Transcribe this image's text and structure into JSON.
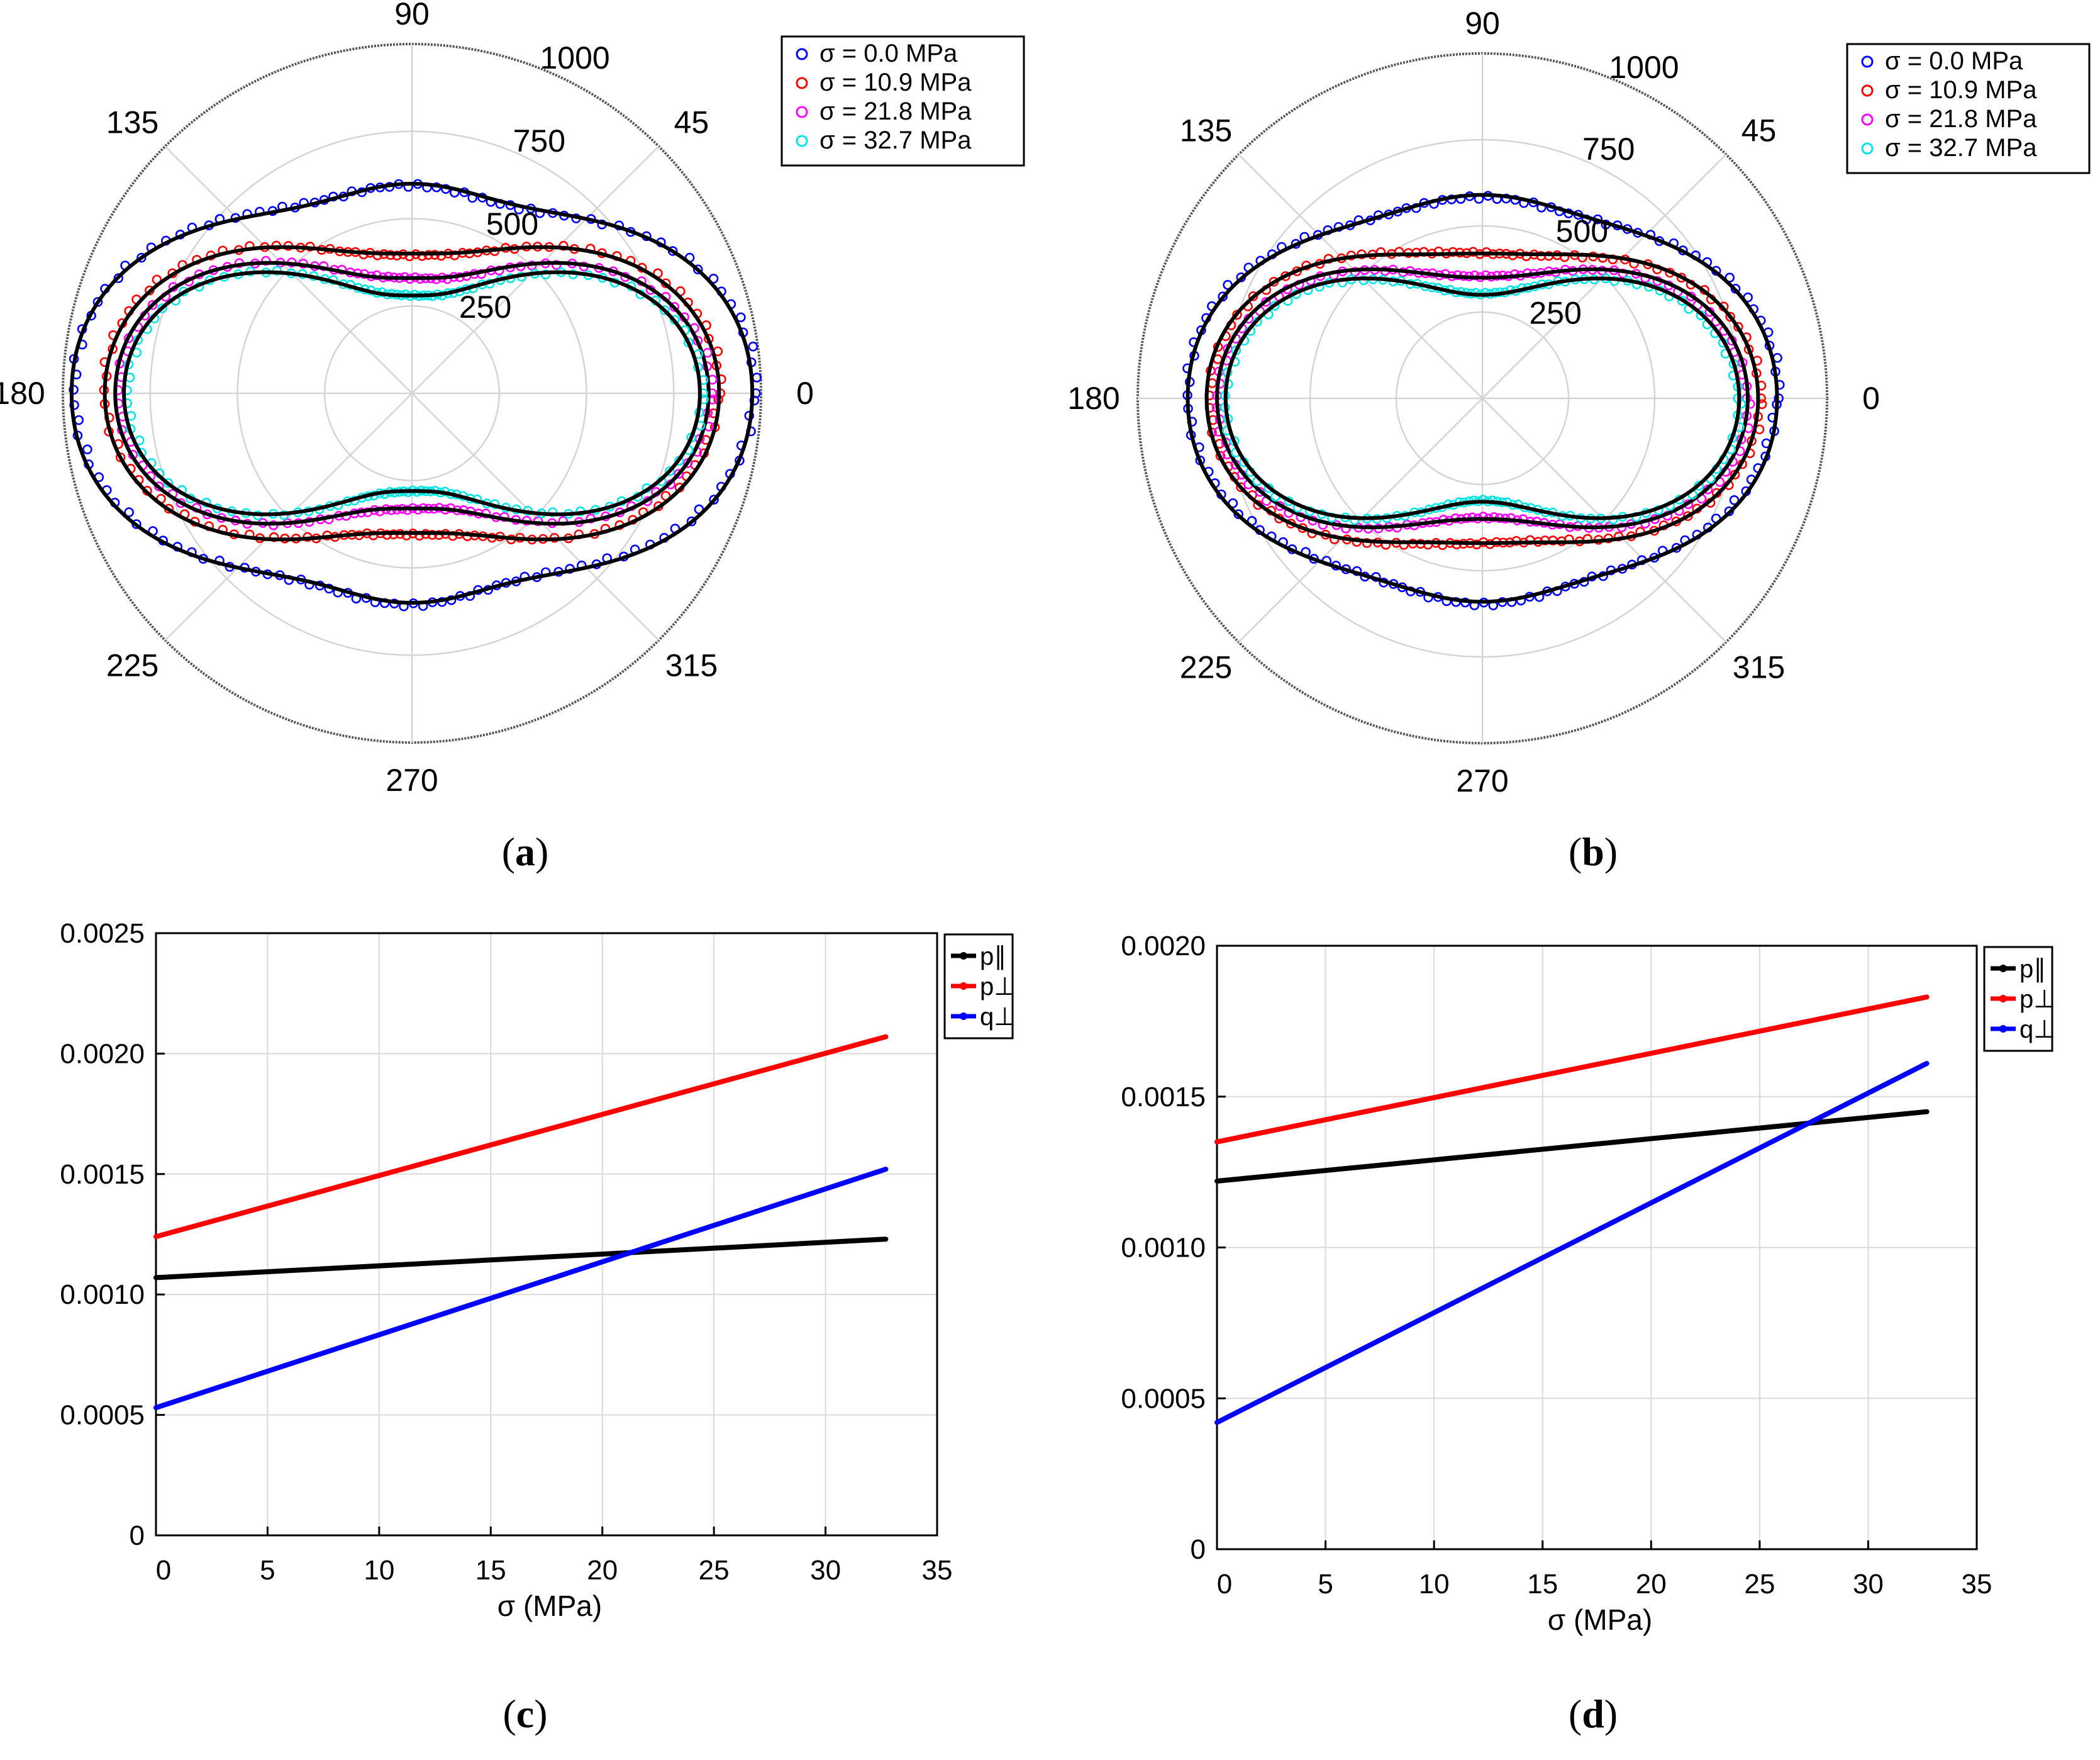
{
  "chart_data": [
    {
      "id": "a",
      "type": "scatter",
      "projection": "polar",
      "caption_letter": "a",
      "angle_ticks": [
        "0",
        "45",
        "90",
        "135",
        "180",
        "225",
        "270",
        "315"
      ],
      "r_ticks": [
        "250",
        "500",
        "750",
        "1000"
      ],
      "r_tick_values": [
        250,
        500,
        750,
        1000
      ],
      "rlim": [
        0,
        1000
      ],
      "legend": [
        {
          "label": "σ =   0.0 MPa",
          "color": "#0000ff"
        },
        {
          "label": "σ = 10.9 MPa",
          "color": "#ff0000"
        },
        {
          "label": "σ = 21.8 MPa",
          "color": "#ff00ff"
        },
        {
          "label": "σ = 32.7 MPa",
          "color": "#00e5e5"
        }
      ],
      "series": [
        {
          "name": "σ = 0.0 MPa",
          "color": "#0000ff",
          "r_at_0deg": 975,
          "r_at_90deg": 600,
          "r_at_35deg": 750
        },
        {
          "name": "σ = 10.9 MPa",
          "color": "#ff0000",
          "r_at_0deg": 880,
          "r_at_90deg": 400,
          "r_at_35deg": 660
        },
        {
          "name": "σ = 21.8 MPa",
          "color": "#ff00ff",
          "r_at_0deg": 850,
          "r_at_90deg": 330,
          "r_at_35deg": 600
        },
        {
          "name": "σ = 32.7 MPa",
          "color": "#00e5e5",
          "r_at_0deg": 825,
          "r_at_90deg": 280,
          "r_at_35deg": 560
        }
      ],
      "fit_color": "#000000"
    },
    {
      "id": "b",
      "type": "scatter",
      "projection": "polar",
      "caption_letter": "b",
      "angle_ticks": [
        "0",
        "45",
        "90",
        "135",
        "180",
        "225",
        "270",
        "315"
      ],
      "r_ticks": [
        "250",
        "500",
        "750",
        "1000"
      ],
      "r_tick_values": [
        250,
        500,
        750,
        1000
      ],
      "rlim": [
        0,
        1000
      ],
      "legend": [
        {
          "label": "σ =   0.0 MPa",
          "color": "#0000ff"
        },
        {
          "label": "σ = 10.9 MPa",
          "color": "#ff0000"
        },
        {
          "label": "σ = 21.8 MPa",
          "color": "#ff00ff"
        },
        {
          "label": "σ = 32.7 MPa",
          "color": "#00e5e5"
        }
      ],
      "series": [
        {
          "name": "σ = 0.0 MPa",
          "color": "#0000ff",
          "r_at_0deg": 855,
          "r_at_90deg": 590,
          "r_at_35deg": 700
        },
        {
          "name": "σ = 10.9 MPa",
          "color": "#ff0000",
          "r_at_0deg": 800,
          "r_at_90deg": 420,
          "r_at_35deg": 630
        },
        {
          "name": "σ = 21.8 MPa",
          "color": "#ff00ff",
          "r_at_0deg": 770,
          "r_at_90deg": 350,
          "r_at_35deg": 590
        },
        {
          "name": "σ = 32.7 MPa",
          "color": "#00e5e5",
          "r_at_0deg": 745,
          "r_at_90deg": 300,
          "r_at_35deg": 560
        }
      ],
      "fit_color": "#000000"
    },
    {
      "id": "c",
      "type": "line",
      "caption_letter": "c",
      "xlabel": "σ (MPa)",
      "ylabel": "",
      "xlim": [
        0,
        35
      ],
      "ylim": [
        0,
        0.0025
      ],
      "x_ticks": [
        0,
        5,
        10,
        15,
        20,
        25,
        30,
        35
      ],
      "x_tick_labels": [
        "0",
        "5",
        "10",
        "15",
        "20",
        "25",
        "30",
        "35"
      ],
      "y_ticks": [
        0,
        0.0005,
        0.001,
        0.0015,
        0.002,
        0.0025
      ],
      "y_tick_labels": [
        "0",
        "0.0005",
        "0.0010",
        "0.0015",
        "0.0020",
        "0.0025"
      ],
      "grid": true,
      "legend_position": "top-right",
      "series": [
        {
          "name": "p∥",
          "color": "#000000",
          "x": [
            0,
            32.7
          ],
          "y": [
            0.00107,
            0.00123
          ]
        },
        {
          "name": "p⊥",
          "color": "#ff0000",
          "x": [
            0,
            32.7
          ],
          "y": [
            0.00124,
            0.00207
          ]
        },
        {
          "name": "q⊥",
          "color": "#0000ff",
          "x": [
            0,
            32.7
          ],
          "y": [
            0.00053,
            0.00152
          ]
        }
      ]
    },
    {
      "id": "d",
      "type": "line",
      "caption_letter": "d",
      "xlabel": "σ (MPa)",
      "ylabel": "",
      "xlim": [
        0,
        35
      ],
      "ylim": [
        0,
        0.002
      ],
      "x_ticks": [
        0,
        5,
        10,
        15,
        20,
        25,
        30,
        35
      ],
      "x_tick_labels": [
        "0",
        "5",
        "10",
        "15",
        "20",
        "25",
        "30",
        "35"
      ],
      "y_ticks": [
        0,
        0.0005,
        0.001,
        0.0015,
        0.002
      ],
      "y_tick_labels": [
        "0",
        "0.0005",
        "0.0010",
        "0.0015",
        "0.0020"
      ],
      "grid": true,
      "legend_position": "top-right",
      "series": [
        {
          "name": "p∥",
          "color": "#000000",
          "x": [
            0,
            32.7
          ],
          "y": [
            0.00122,
            0.00145
          ]
        },
        {
          "name": "p⊥",
          "color": "#ff0000",
          "x": [
            0,
            32.7
          ],
          "y": [
            0.00135,
            0.00183
          ]
        },
        {
          "name": "q⊥",
          "color": "#0000ff",
          "x": [
            0,
            32.7
          ],
          "y": [
            0.00042,
            0.00161
          ]
        }
      ]
    }
  ]
}
